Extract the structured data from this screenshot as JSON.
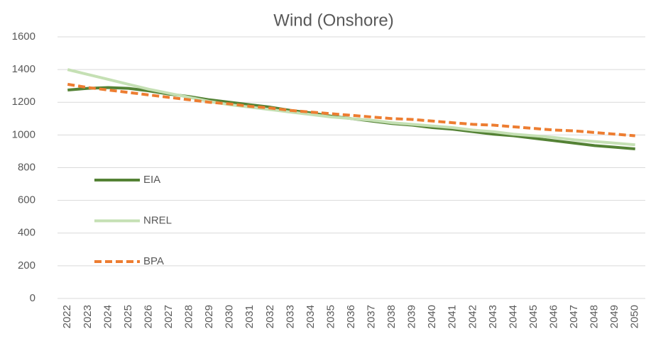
{
  "chart_data": {
    "type": "line",
    "title": "Wind (Onshore)",
    "categories": [
      "2022",
      "2023",
      "2024",
      "2025",
      "2026",
      "2027",
      "2028",
      "2029",
      "2030",
      "2031",
      "2032",
      "2033",
      "2034",
      "2035",
      "2036",
      "2037",
      "2038",
      "2039",
      "2040",
      "2041",
      "2042",
      "2043",
      "2044",
      "2045",
      "2046",
      "2047",
      "2048",
      "2049",
      "2050"
    ],
    "series": [
      {
        "name": "EIA",
        "color": "#548235",
        "style": "solid",
        "values": [
          1275,
          1285,
          1290,
          1285,
          1270,
          1250,
          1235,
          1215,
          1200,
          1185,
          1170,
          1150,
          1135,
          1115,
          1100,
          1085,
          1070,
          1060,
          1045,
          1035,
          1020,
          1005,
          995,
          980,
          965,
          950,
          935,
          925,
          915
        ]
      },
      {
        "name": "NREL",
        "color": "#c5e0b4",
        "style": "solid",
        "values": [
          1400,
          1370,
          1340,
          1310,
          1280,
          1255,
          1230,
          1205,
          1185,
          1170,
          1155,
          1140,
          1125,
          1110,
          1100,
          1090,
          1075,
          1065,
          1055,
          1045,
          1030,
          1020,
          1005,
          995,
          985,
          970,
          960,
          950,
          940
        ]
      },
      {
        "name": "BPA",
        "color": "#ed7d31",
        "style": "dashed",
        "values": [
          1310,
          1290,
          1275,
          1260,
          1245,
          1230,
          1215,
          1200,
          1190,
          1175,
          1165,
          1150,
          1140,
          1130,
          1120,
          1110,
          1100,
          1095,
          1085,
          1075,
          1065,
          1060,
          1050,
          1040,
          1030,
          1025,
          1015,
          1005,
          995
        ]
      }
    ],
    "ylim": [
      0,
      1600
    ],
    "yticks": [
      0,
      200,
      400,
      600,
      800,
      1000,
      1200,
      1400,
      1600
    ],
    "grid": true
  }
}
